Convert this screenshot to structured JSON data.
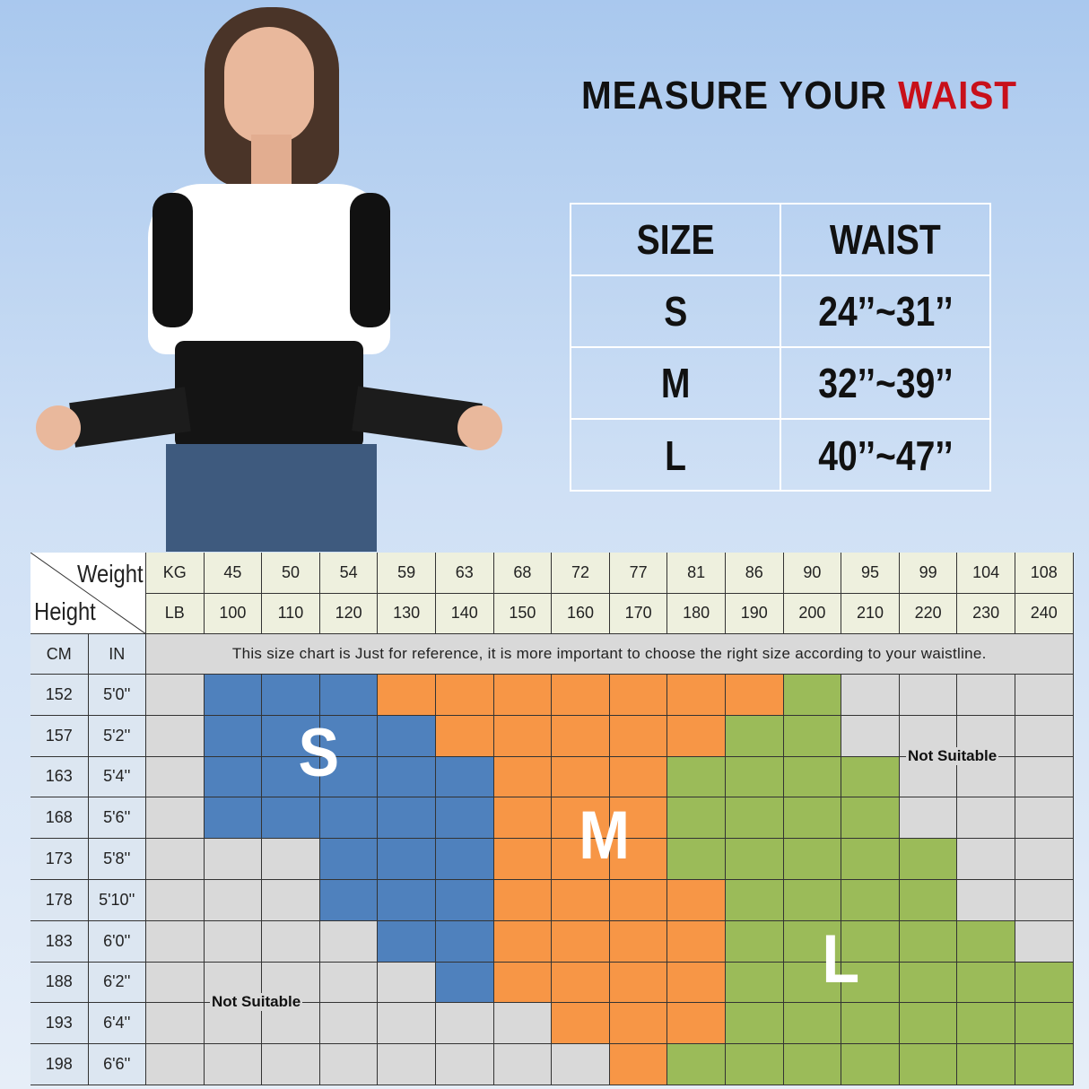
{
  "title": {
    "prefix": "MEASURE YOUR ",
    "highlight": "WAIST"
  },
  "waist_table": {
    "headers": [
      "SIZE",
      "WAIST"
    ],
    "rows": [
      [
        "S",
        "24’’~31’’"
      ],
      [
        "M",
        "32’’~39’’"
      ],
      [
        "L",
        "40’’~47’’"
      ]
    ]
  },
  "size_chart": {
    "corner": {
      "weight": "Weight",
      "height": "Height"
    },
    "kg_label": "KG",
    "lb_label": "LB",
    "cm_label": "CM",
    "in_label": "IN",
    "kg": [
      "45",
      "50",
      "54",
      "59",
      "63",
      "68",
      "72",
      "77",
      "81",
      "86",
      "90",
      "95",
      "99",
      "104",
      "108"
    ],
    "lb": [
      "100",
      "110",
      "120",
      "130",
      "140",
      "150",
      "160",
      "170",
      "180",
      "190",
      "200",
      "210",
      "220",
      "230",
      "240"
    ],
    "note": "This size chart is Just for reference, it is more important to choose the right size according to your waistline.",
    "heights": [
      [
        "152",
        "5'0''"
      ],
      [
        "157",
        "5'2''"
      ],
      [
        "163",
        "5'4''"
      ],
      [
        "168",
        "5'6''"
      ],
      [
        "173",
        "5'8''"
      ],
      [
        "178",
        "5'10''"
      ],
      [
        "183",
        "6'0''"
      ],
      [
        "188",
        "6'2''"
      ],
      [
        "193",
        "6'4''"
      ],
      [
        "198",
        "6'6''"
      ]
    ],
    "sizes": [
      [
        "S",
        "S",
        "S",
        "M",
        "M",
        "M",
        "M",
        "M",
        "M",
        "M",
        "L",
        "-",
        "-",
        "-",
        "-"
      ],
      [
        "S",
        "S",
        "S",
        "S",
        "M",
        "M",
        "M",
        "M",
        "M",
        "L",
        "L",
        "-",
        "-",
        "-",
        "-"
      ],
      [
        "S",
        "S",
        "S",
        "S",
        "S",
        "M",
        "M",
        "M",
        "L",
        "L",
        "L",
        "L",
        "-",
        "-",
        "-"
      ],
      [
        "S",
        "S",
        "S",
        "S",
        "S",
        "M",
        "M",
        "M",
        "L",
        "L",
        "L",
        "L",
        "-",
        "-",
        "-"
      ],
      [
        "-",
        "-",
        "S",
        "S",
        "S",
        "M",
        "M",
        "M",
        "L",
        "L",
        "L",
        "L",
        "L",
        "-",
        "-"
      ],
      [
        "-",
        "-",
        "S",
        "S",
        "S",
        "M",
        "M",
        "M",
        "M",
        "L",
        "L",
        "L",
        "L",
        "-",
        "-"
      ],
      [
        "-",
        "-",
        "-",
        "S",
        "S",
        "M",
        "M",
        "M",
        "M",
        "L",
        "L",
        "L",
        "L",
        "L",
        "-"
      ],
      [
        "-",
        "-",
        "-",
        "-",
        "S",
        "M",
        "M",
        "M",
        "M",
        "L",
        "L",
        "L",
        "L",
        "L",
        "L"
      ],
      [
        "-",
        "-",
        "-",
        "-",
        "-",
        "-",
        "M",
        "M",
        "M",
        "L",
        "L",
        "L",
        "L",
        "L",
        "L"
      ],
      [
        "-",
        "-",
        "-",
        "-",
        "-",
        "-",
        "-",
        "M",
        "L",
        "L",
        "L",
        "L",
        "L",
        "L",
        "L"
      ]
    ],
    "labels": {
      "S": "S",
      "M": "M",
      "L": "L",
      "not_suitable": "Not Suitable"
    },
    "colors": {
      "S": "#4f81bd",
      "M": "#f79646",
      "L": "#9bbb59",
      "-": "#d9d9d9"
    }
  }
}
